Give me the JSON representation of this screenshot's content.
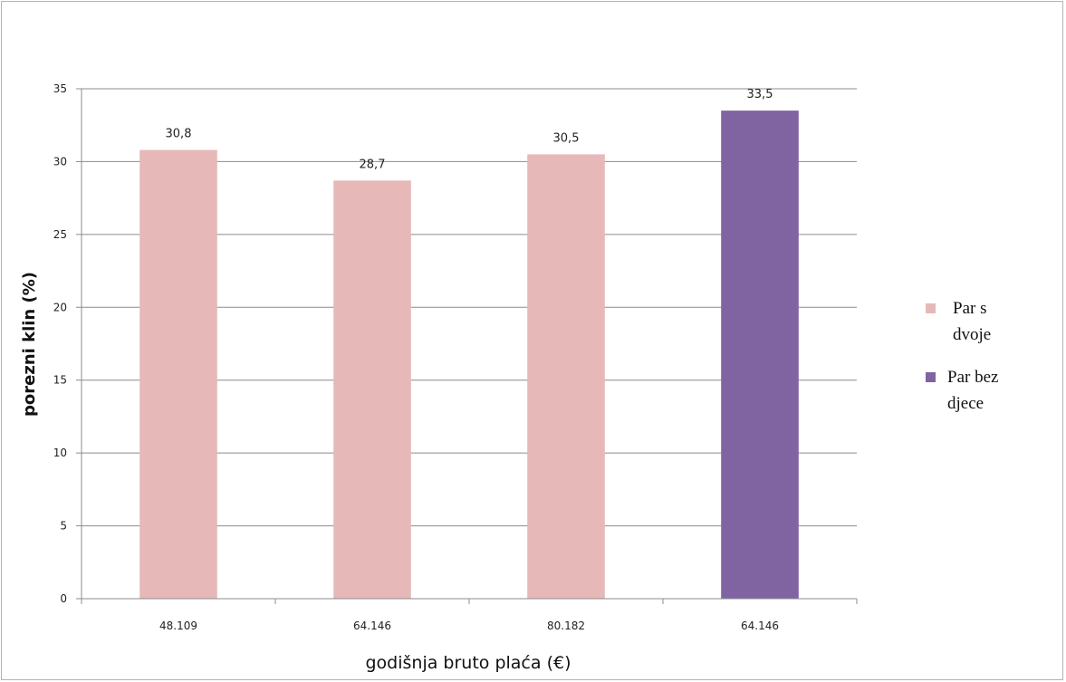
{
  "chart_data": {
    "type": "bar",
    "categories": [
      "48.109",
      "64.146",
      "80.182",
      "64.146"
    ],
    "values": [
      30.8,
      28.7,
      30.5,
      33.5
    ],
    "value_labels": [
      "30,8",
      "28,7",
      "30,5",
      "33,5"
    ],
    "series_index": [
      0,
      0,
      0,
      1
    ],
    "series": [
      {
        "name": "Par s dvoje",
        "name_lines": [
          "Par s",
          "dvoje"
        ],
        "color": "#e6b9b8"
      },
      {
        "name": "Par bez djece",
        "name_lines": [
          "Par bez",
          "djece"
        ],
        "color": "#8064a2"
      }
    ],
    "title": "",
    "xlabel": "godišnja bruto plaća (€)",
    "ylabel": "porezni klin (%)",
    "ylim": [
      0,
      35
    ],
    "yticks": [
      0,
      5,
      10,
      15,
      20,
      25,
      30,
      35
    ],
    "grid": true,
    "legend_position": "right"
  }
}
